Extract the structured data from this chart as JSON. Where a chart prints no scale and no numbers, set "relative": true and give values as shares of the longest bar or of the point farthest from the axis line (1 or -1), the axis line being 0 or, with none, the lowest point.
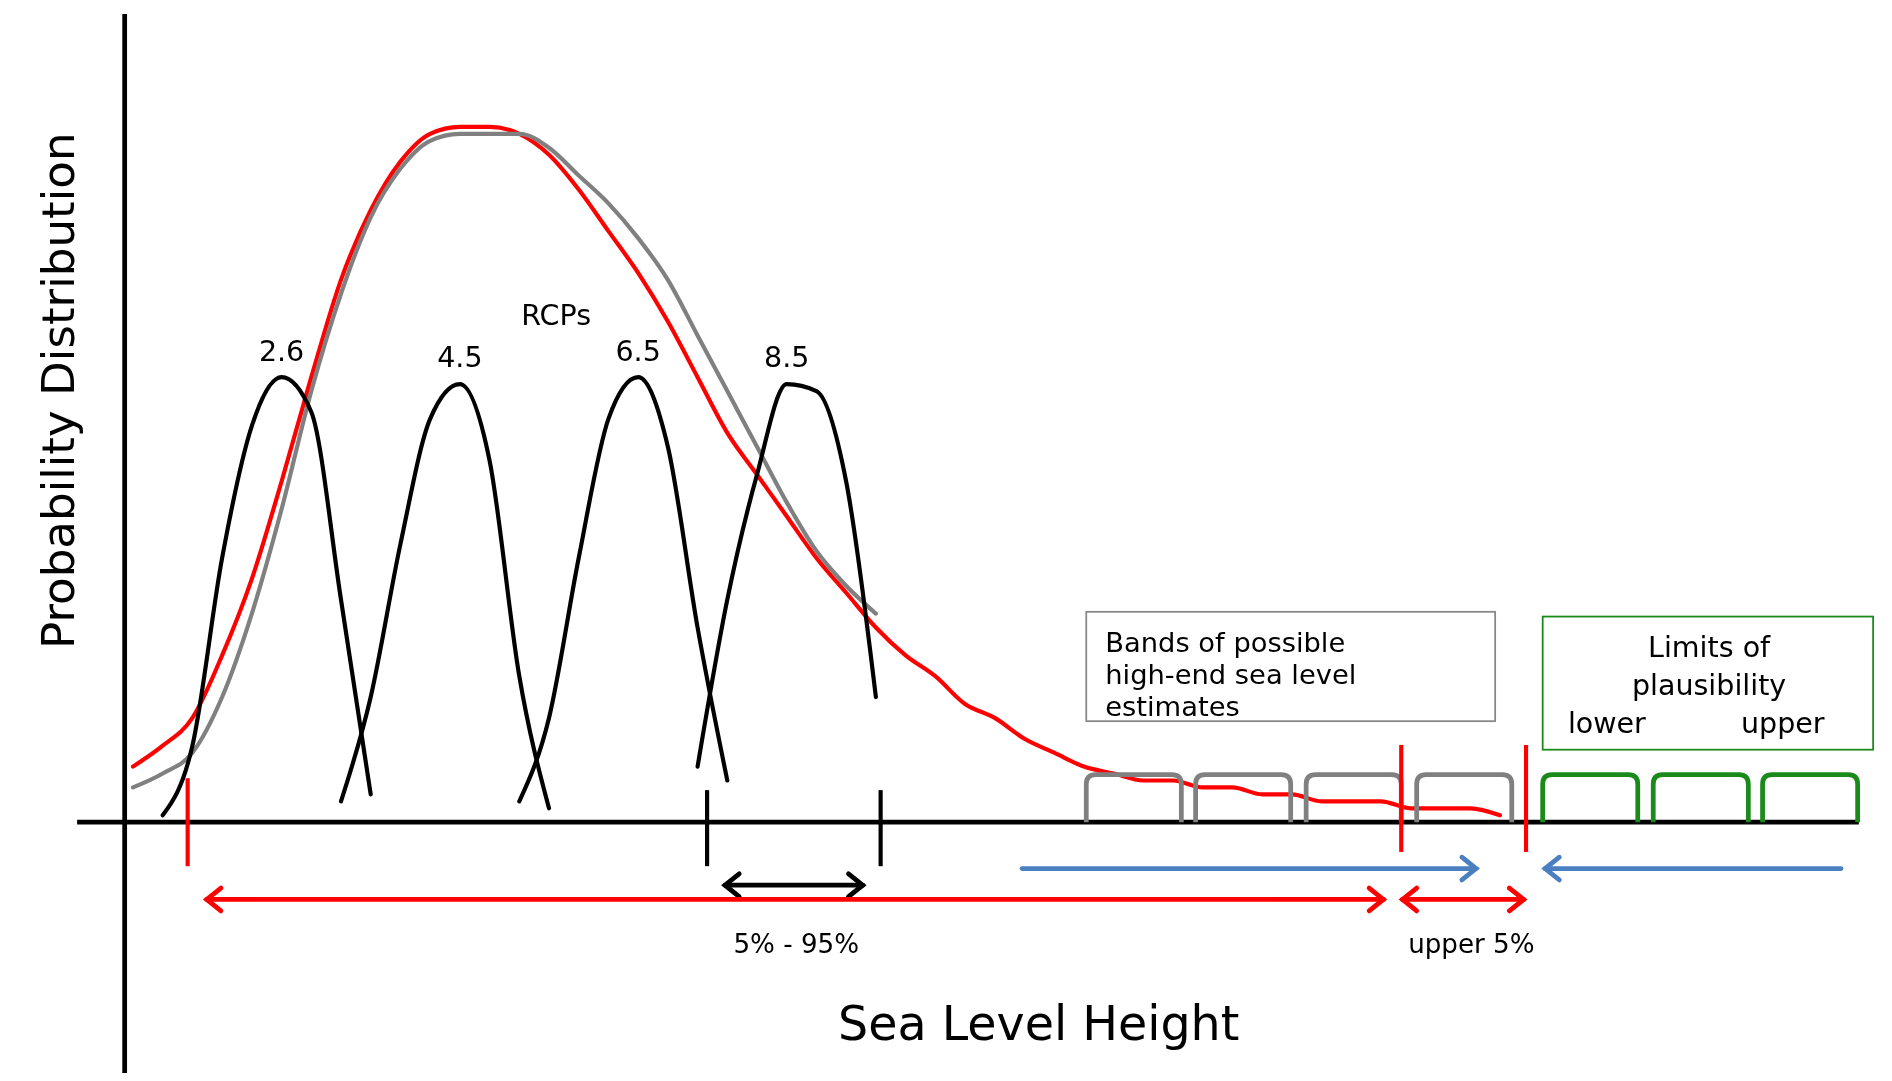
{
  "chart_data": {
    "type": "line",
    "relative": true,
    "xlabel": "Sea Level Height",
    "ylabel": "Probability Distribution",
    "line_style": "solid",
    "marker": "none",
    "annotations": [
      "RCPs",
      "5% - 95%",
      "upper 5%",
      "Bands of possible high-end sea level estimates",
      "Limits of plausibility",
      "lower",
      "upper"
    ],
    "categories": [
      null,
      null,
      null,
      null,
      null,
      null,
      null,
      null,
      null,
      null,
      null,
      null,
      null,
      null,
      null,
      null,
      null,
      null,
      null,
      null,
      null,
      null,
      null,
      null,
      null,
      null,
      null,
      null,
      null,
      null,
      null,
      null,
      null,
      null,
      null,
      null,
      null,
      null,
      null,
      null,
      null,
      null,
      null,
      null,
      null,
      null,
      null,
      null,
      null,
      null,
      null,
      null,
      null,
      null,
      null,
      null,
      null,
      null,
      null
    ],
    "series": [
      {
        "color": "#ff0000",
        "values": [
          0.08,
          0.11,
          0.15,
          0.24,
          0.35,
          0.49,
          0.64,
          0.78,
          0.88,
          0.95,
          0.99,
          1,
          1,
          0.99,
          0.96,
          0.91,
          0.85,
          0.79,
          0.72,
          0.64,
          0.56,
          0.5,
          0.44,
          0.38,
          0.33,
          0.28,
          0.24,
          0.21,
          0.17,
          0.15,
          0.12,
          0.1,
          0.08,
          0.07,
          0.06,
          0.06,
          0.05,
          0.05,
          0.04,
          0.04,
          0.03,
          0.03,
          0.03,
          0.02,
          0.02,
          0.02,
          0.01,
          null,
          null,
          null,
          null,
          null,
          null,
          null,
          null,
          null,
          null,
          null,
          null
        ]
      },
      {
        "color": "#808080",
        "values": [
          0.05,
          0.07,
          0.1,
          0.18,
          0.3,
          0.45,
          0.62,
          0.76,
          0.87,
          0.94,
          0.98,
          0.99,
          0.99,
          0.99,
          0.97,
          0.93,
          0.89,
          0.84,
          0.78,
          0.7,
          0.62,
          0.54,
          0.46,
          0.39,
          0.34,
          0.3,
          null,
          null,
          null,
          null,
          null,
          null,
          null,
          null,
          null,
          null,
          null,
          null,
          null,
          null,
          null,
          null,
          null,
          null,
          null,
          null,
          null,
          null,
          null,
          null,
          null,
          null,
          null,
          null,
          null,
          null,
          null,
          null,
          null
        ]
      },
      {
        "name": "2.6",
        "color": "#000000",
        "values": [
          null,
          0.01,
          0.11,
          0.38,
          0.57,
          0.64,
          0.59,
          0.32,
          0.04,
          null,
          null,
          null,
          null,
          null,
          null,
          null,
          null,
          null,
          null,
          null,
          null,
          null,
          null,
          null,
          null,
          null,
          null,
          null,
          null,
          null,
          null,
          null,
          null,
          null,
          null,
          null,
          null,
          null,
          null,
          null,
          null,
          null,
          null,
          null,
          null,
          null,
          null,
          null,
          null,
          null,
          null,
          null,
          null,
          null,
          null,
          null,
          null,
          null,
          null
        ]
      },
      {
        "name": "4.5",
        "color": "#000000",
        "values": [
          null,
          null,
          null,
          null,
          null,
          null,
          null,
          0.03,
          0.18,
          0.4,
          0.58,
          0.63,
          0.52,
          0.21,
          0.02,
          null,
          null,
          null,
          null,
          null,
          null,
          null,
          null,
          null,
          null,
          null,
          null,
          null,
          null,
          null,
          null,
          null,
          null,
          null,
          null,
          null,
          null,
          null,
          null,
          null,
          null,
          null,
          null,
          null,
          null,
          null,
          null,
          null,
          null,
          null,
          null,
          null,
          null,
          null,
          null,
          null,
          null,
          null,
          null
        ]
      },
      {
        "name": "6.5",
        "color": "#000000",
        "values": [
          null,
          null,
          null,
          null,
          null,
          null,
          null,
          null,
          null,
          null,
          null,
          null,
          null,
          0.03,
          0.15,
          0.38,
          0.58,
          0.64,
          0.54,
          0.28,
          0.06,
          null,
          null,
          null,
          null,
          null,
          null,
          null,
          null,
          null,
          null,
          null,
          null,
          null,
          null,
          null,
          null,
          null,
          null,
          null,
          null,
          null,
          null,
          null,
          null,
          null,
          null,
          null,
          null,
          null,
          null,
          null,
          null,
          null,
          null,
          null,
          null,
          null,
          null
        ]
      },
      {
        "name": "8.5",
        "color": "#000000",
        "values": [
          null,
          null,
          null,
          null,
          null,
          null,
          null,
          null,
          null,
          null,
          null,
          null,
          null,
          null,
          null,
          null,
          null,
          null,
          null,
          0.08,
          0.32,
          0.5,
          0.63,
          0.62,
          0.49,
          0.18,
          null,
          null,
          null,
          null,
          null,
          null,
          null,
          null,
          null,
          null,
          null,
          null,
          null,
          null,
          null,
          null,
          null,
          null,
          null,
          null,
          null,
          null,
          null,
          null,
          null,
          null,
          null,
          null,
          null,
          null,
          null,
          null,
          null
        ]
      }
    ]
  }
}
